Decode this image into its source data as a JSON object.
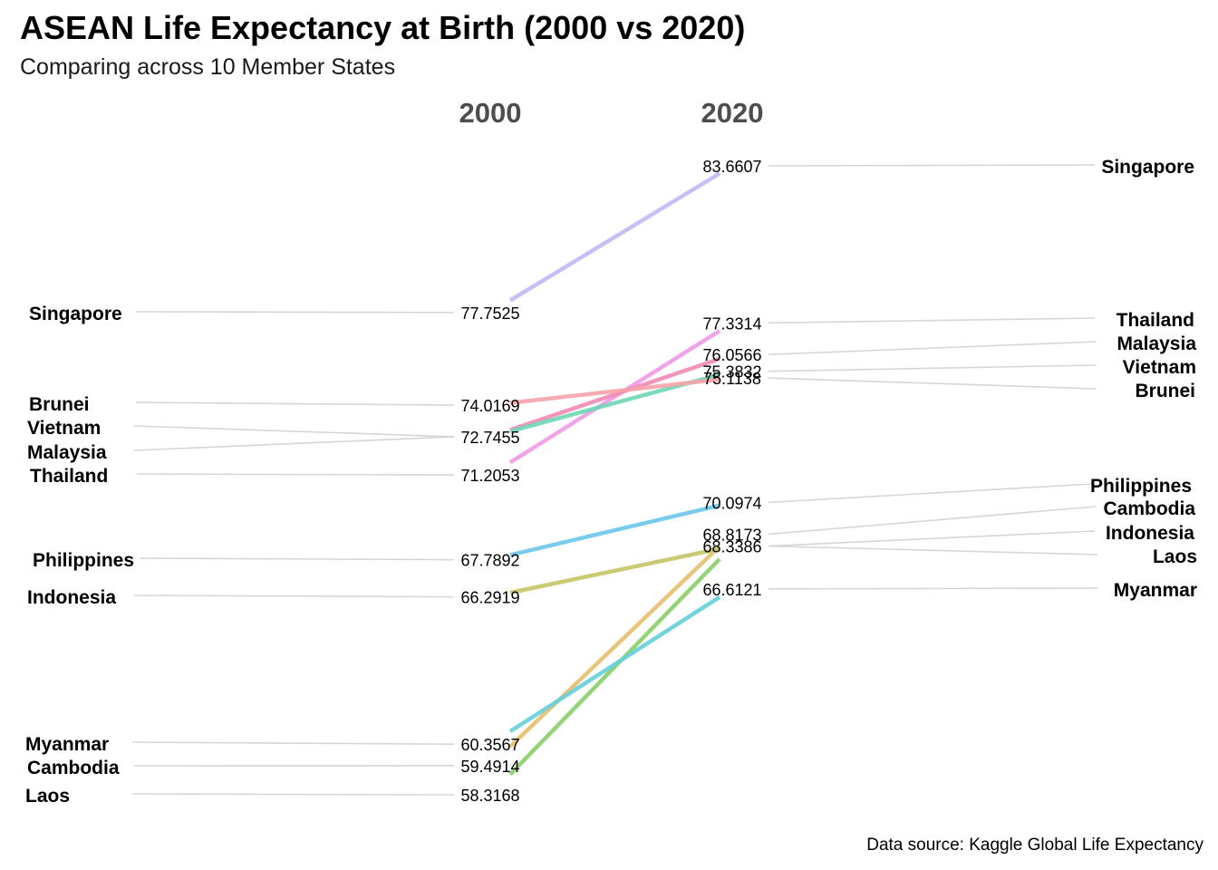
{
  "title": "ASEAN Life Expectancy at Birth (2000 vs 2020)",
  "subtitle": "Comparing across 10 Member States",
  "caption": "Data source: Kaggle Global Life Expectancy",
  "chart_data": {
    "type": "slope",
    "x": [
      "2000",
      "2020"
    ],
    "series": [
      {
        "name": "Singapore",
        "values": [
          77.7525,
          83.6607
        ],
        "color": "#c2baf4"
      },
      {
        "name": "Thailand",
        "values": [
          71.2053,
          77.3314
        ],
        "color": "#f09be6"
      },
      {
        "name": "Malaysia",
        "values": [
          72.7455,
          76.0566
        ],
        "color": "#f08ab5"
      },
      {
        "name": "Vietnam",
        "values": [
          72.7455,
          75.3832
        ],
        "color": "#6dd8b4"
      },
      {
        "name": "Brunei",
        "values": [
          74.0169,
          75.1138
        ],
        "color": "#f6a3a8"
      },
      {
        "name": "Philippines",
        "values": [
          67.7892,
          70.0974
        ],
        "color": "#6cc7ee"
      },
      {
        "name": "Cambodia",
        "values": [
          59.4914,
          68.8173
        ],
        "color": "#e7bf6e"
      },
      {
        "name": "Indonesia",
        "values": [
          66.2919,
          68.3386
        ],
        "color": "#c6c667"
      },
      {
        "name": "Laos",
        "values": [
          58.3168,
          68.3386
        ],
        "color": "#89cf6a"
      },
      {
        "name": "Myanmar",
        "values": [
          60.3567,
          66.6121
        ],
        "color": "#66d0da"
      }
    ],
    "left_value_labels": [
      "77.7525",
      "74.0169",
      "72.7455",
      "71.2053",
      "67.7892",
      "66.2919",
      "60.3567",
      "59.4914",
      "58.3168"
    ],
    "right_value_labels": [
      "83.6607",
      "77.3314",
      "76.0566",
      "75.3832",
      "75.1138",
      "70.0974",
      "68.8173",
      "68.3386",
      "66.6121"
    ],
    "left_names_order": [
      "Singapore",
      "Brunei",
      "Vietnam",
      "Malaysia",
      "Thailand",
      "Philippines",
      "Indonesia",
      "Myanmar",
      "Cambodia",
      "Laos"
    ],
    "right_names_order": [
      "Singapore",
      "Thailand",
      "Malaysia",
      "Vietnam",
      "Brunei",
      "Philippines",
      "Cambodia",
      "Indonesia",
      "Laos",
      "Myanmar"
    ]
  }
}
